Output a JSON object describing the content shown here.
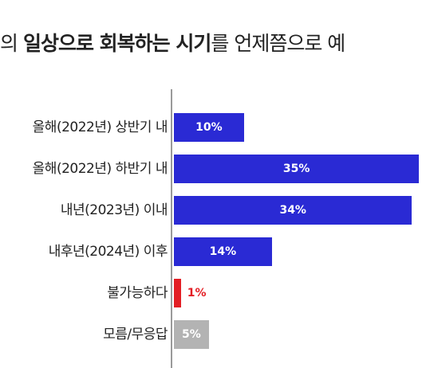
{
  "title": {
    "p1": "전의 ",
    "b1": "일상으로 회복하는 시기",
    "p2": "를 언제쯤으로 예"
  },
  "colors": {
    "main": "#2a2ad4",
    "impossible": "#e31e24",
    "unknown": "#b3b3b3",
    "axis": "#9a9a9a"
  },
  "chart_data": {
    "type": "bar",
    "orientation": "horizontal",
    "categories": [
      "올해(2022년) 상반기 내",
      "올해(2022년) 하반기 내",
      "내년(2023년) 이내",
      "내후년(2024년) 이후",
      "불가능하다",
      "모름/무응답"
    ],
    "values": [
      10,
      35,
      34,
      14,
      1,
      5
    ],
    "value_labels": [
      "10%",
      "35%",
      "34%",
      "14%",
      "1%",
      "5%"
    ],
    "bar_colors": [
      "#2a2ad4",
      "#2a2ad4",
      "#2a2ad4",
      "#2a2ad4",
      "#e31e24",
      "#b3b3b3"
    ],
    "label_colors": [
      "#ffffff",
      "#ffffff",
      "#ffffff",
      "#ffffff",
      "#e31e24",
      "#ffffff"
    ],
    "xlim": [
      0,
      36
    ],
    "grid": false,
    "legend": "none"
  }
}
